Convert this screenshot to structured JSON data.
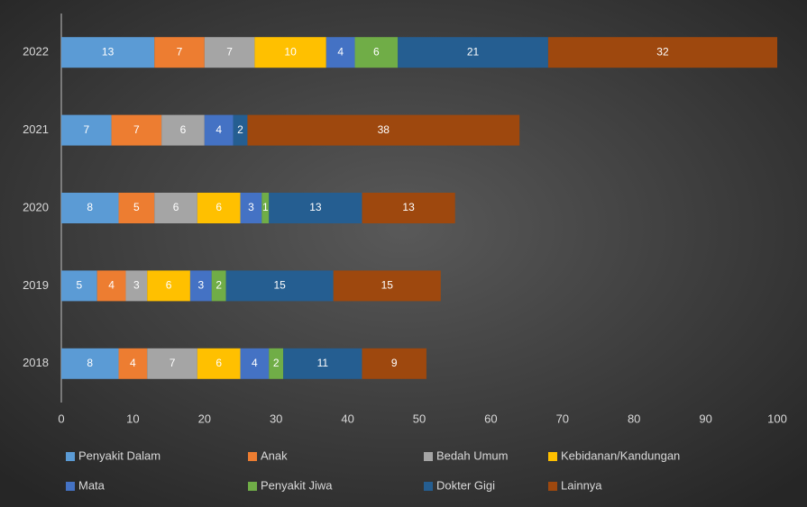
{
  "chart_data": {
    "type": "stacked_barh",
    "categories": [
      "2022",
      "2021",
      "2020",
      "2019",
      "2018"
    ],
    "series": [
      {
        "name": "Penyakit Dalam",
        "color": "#5b9bd5",
        "values": [
          13,
          7,
          8,
          5,
          8
        ]
      },
      {
        "name": "Anak",
        "color": "#ed7d31",
        "values": [
          7,
          7,
          5,
          4,
          4
        ]
      },
      {
        "name": "Bedah Umum",
        "color": "#a5a5a5",
        "values": [
          7,
          6,
          6,
          3,
          7
        ]
      },
      {
        "name": "Kebidanan/Kandungan",
        "color": "#ffc000",
        "values": [
          10,
          null,
          6,
          6,
          6
        ]
      },
      {
        "name": "Mata",
        "color": "#4472c4",
        "values": [
          4,
          4,
          3,
          3,
          4
        ]
      },
      {
        "name": "Penyakit Jiwa",
        "color": "#70ad47",
        "values": [
          6,
          null,
          1,
          2,
          2
        ]
      },
      {
        "name": "Dokter Gigi",
        "color": "#255e91",
        "values": [
          21,
          2,
          13,
          15,
          11
        ]
      },
      {
        "name": "Lainnya",
        "color": "#9e480e",
        "values": [
          32,
          38,
          13,
          15,
          9
        ]
      }
    ],
    "xlim": [
      0,
      100
    ],
    "xticks": [
      0,
      10,
      20,
      30,
      40,
      50,
      60,
      70,
      80,
      90,
      100
    ],
    "grid": false,
    "legend": "bottom"
  }
}
